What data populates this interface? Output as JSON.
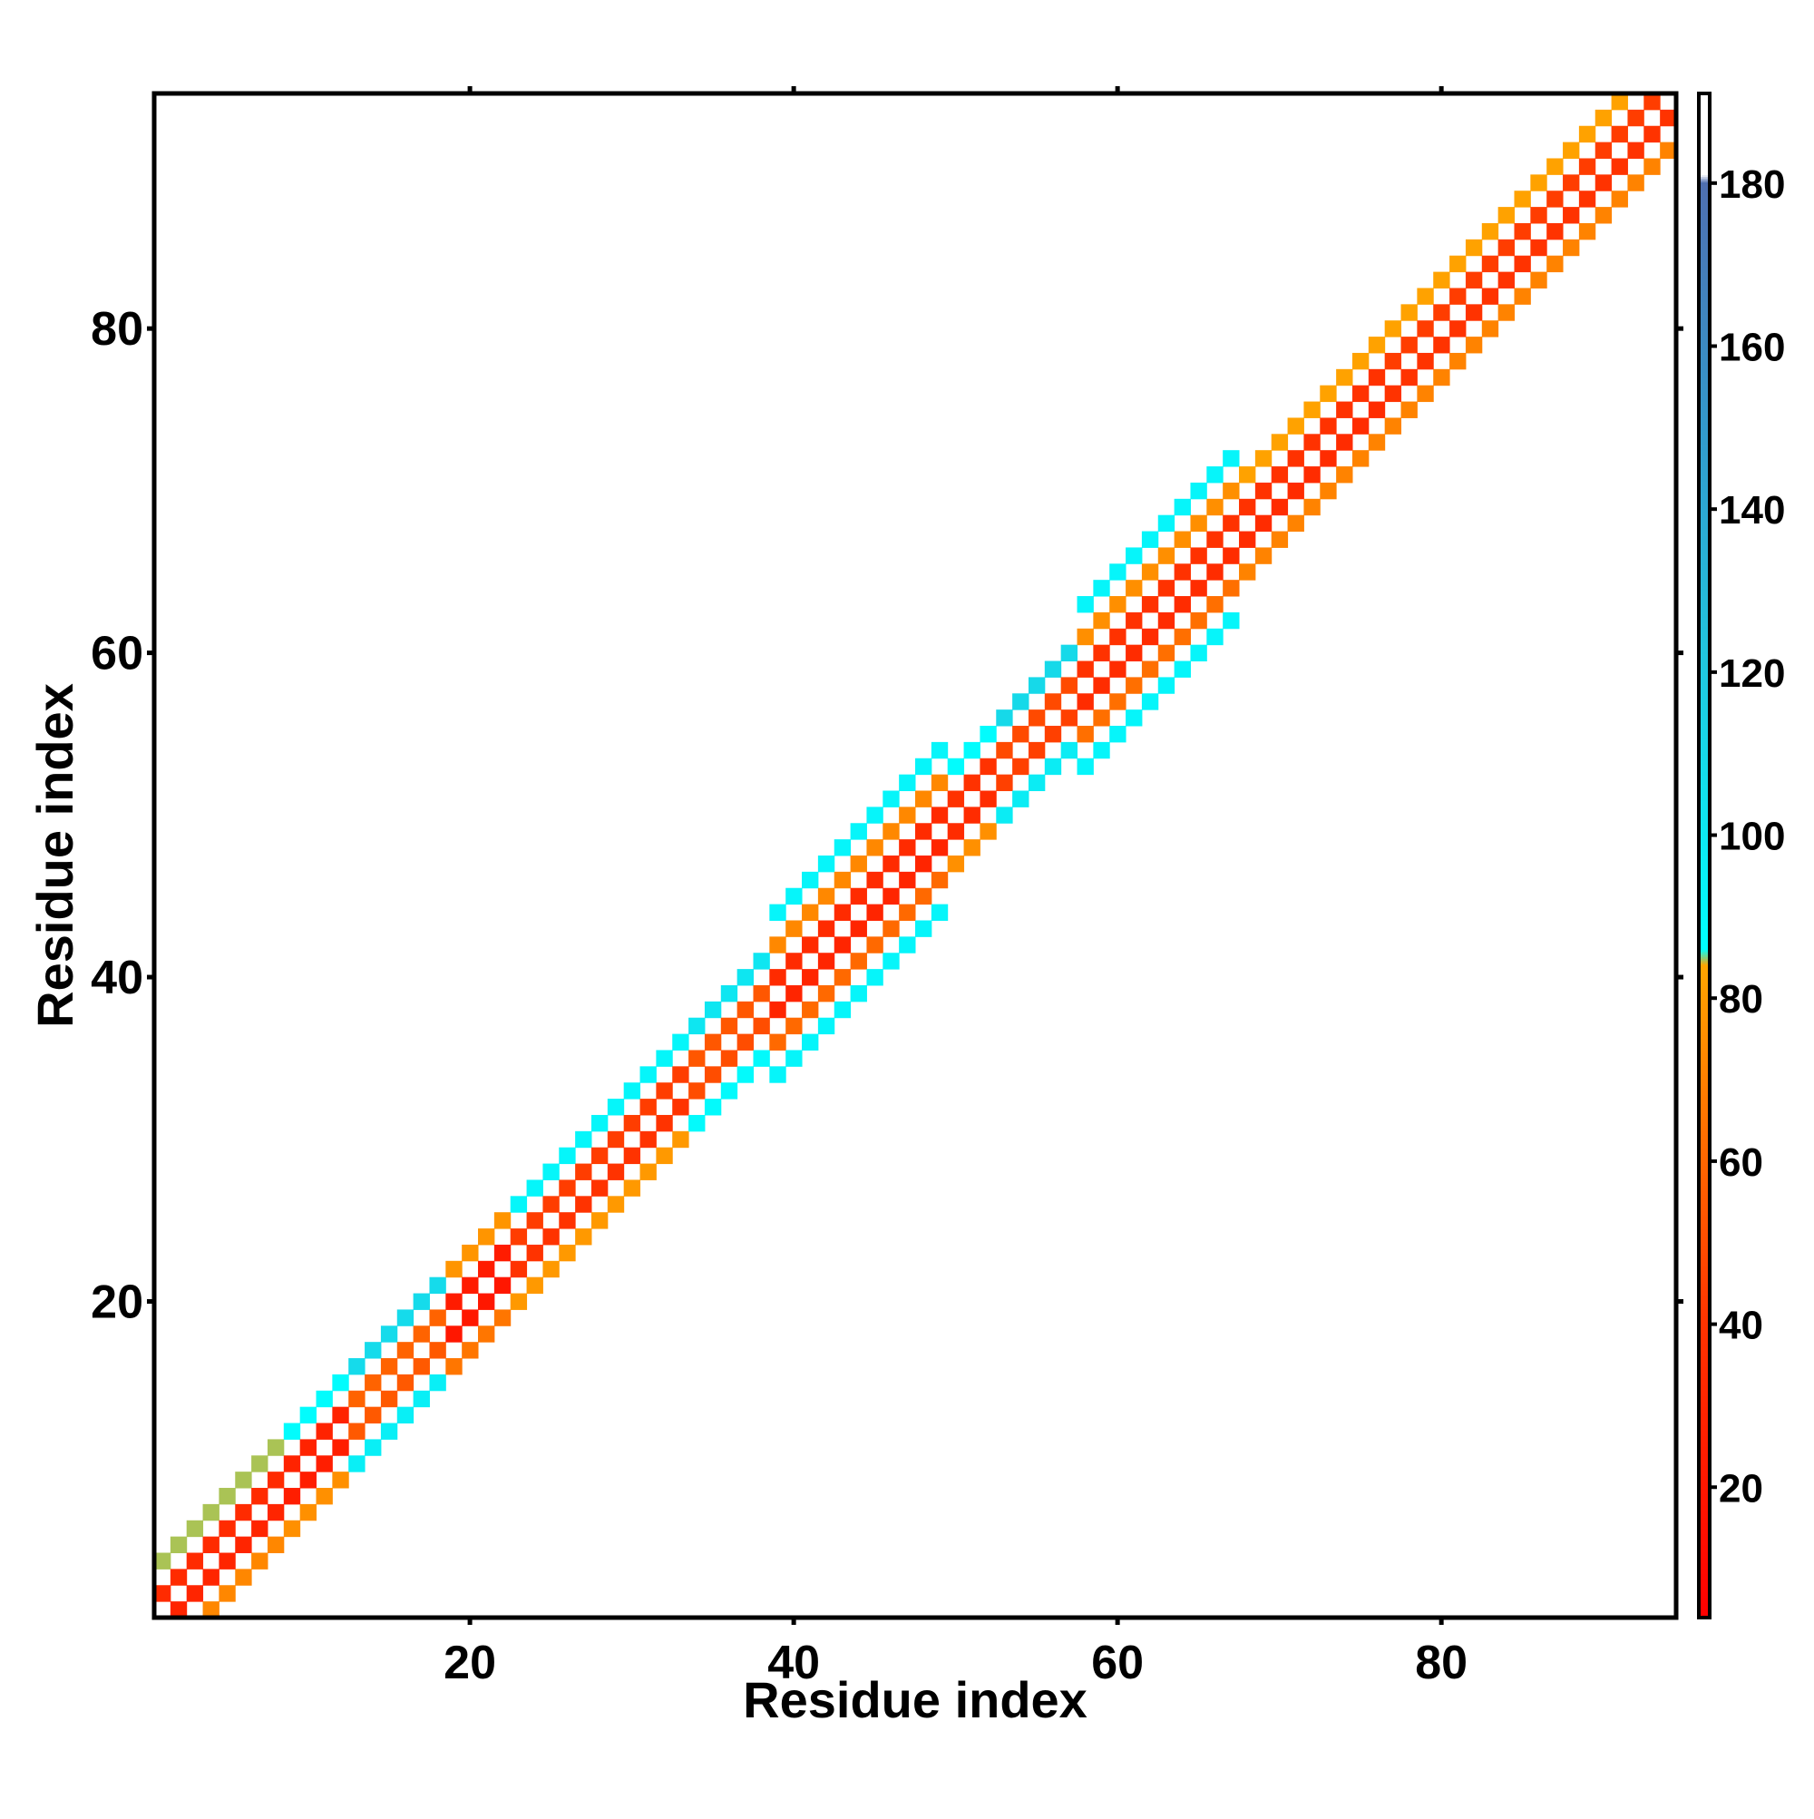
{
  "chart_data": {
    "type": "heatmap",
    "title": "",
    "xlabel": "Residue index",
    "ylabel": "Residue index",
    "xlim": [
      0.5,
      94.5
    ],
    "ylim": [
      0.5,
      94.5
    ],
    "x_ticks": [
      20,
      40,
      60,
      80
    ],
    "y_ticks": [
      20,
      40,
      60,
      80
    ],
    "colorbar": {
      "ticks": [
        20,
        40,
        60,
        80,
        100,
        120,
        140,
        160,
        180
      ],
      "range": [
        4,
        191
      ],
      "stops": [
        {
          "value": 4,
          "color": "#ff0000"
        },
        {
          "value": 40,
          "color": "#ff3300"
        },
        {
          "value": 60,
          "color": "#ff6600"
        },
        {
          "value": 84,
          "color": "#ffa500"
        },
        {
          "value": 86,
          "color": "#00ffff"
        },
        {
          "value": 120,
          "color": "#20c8e0"
        },
        {
          "value": 150,
          "color": "#3399cc"
        },
        {
          "value": 180,
          "color": "#4f6fb0"
        },
        {
          "value": 181,
          "color": "#ffffff"
        },
        {
          "value": 191,
          "color": "#ffffff"
        }
      ]
    },
    "band": {
      "description": "Nonzero cells lie within |i-j| <= halfwidth(i); cells with i=j and alternating checkerboard parity are empty (white). Value per cell region.",
      "segments": [
        {
          "from": 1,
          "to": 8,
          "halfwidth": 4,
          "value_near": 30,
          "value_far": 100
        },
        {
          "from": 9,
          "to": 12,
          "halfwidth": 3,
          "value_near": 25,
          "value_far": 80
        },
        {
          "from": 13,
          "to": 18,
          "halfwidth": 3,
          "value_near": 55,
          "value_far": 100
        },
        {
          "from": 19,
          "to": 22,
          "halfwidth": 3,
          "value_near": 20,
          "value_far": 70
        },
        {
          "from": 23,
          "to": 33,
          "halfwidth": 4,
          "value_near": 40,
          "value_far": 105
        },
        {
          "from": 34,
          "to": 38,
          "halfwidth": 4,
          "value_near": 50,
          "value_far": 115
        },
        {
          "from": 39,
          "to": 49,
          "halfwidth": 5,
          "value_near": 30,
          "value_far": 100
        },
        {
          "from": 50,
          "to": 52,
          "halfwidth": 3,
          "value_near": 35,
          "value_far": 80
        },
        {
          "from": 53,
          "to": 57,
          "halfwidth": 4,
          "value_near": 45,
          "value_far": 130
        },
        {
          "from": 58,
          "to": 67,
          "halfwidth": 5,
          "value_near": 35,
          "value_far": 100
        },
        {
          "from": 68,
          "to": 76,
          "halfwidth": 3,
          "value_near": 35,
          "value_far": 75
        },
        {
          "from": 77,
          "to": 94,
          "halfwidth": 3,
          "value_near": 40,
          "value_far": 75
        }
      ]
    }
  }
}
